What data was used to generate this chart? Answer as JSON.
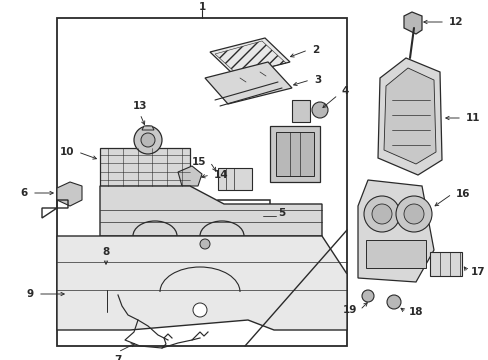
{
  "bg_color": "#ffffff",
  "lc": "#2a2a2a",
  "gray1": "#d8d8d8",
  "gray2": "#c8c8c8",
  "gray3": "#b8b8b8",
  "gray4": "#e8e8e8",
  "parts_labels": [
    "1",
    "2",
    "3",
    "4",
    "5",
    "6",
    "7",
    "8",
    "9",
    "10",
    "11",
    "12",
    "13",
    "14",
    "15",
    "16",
    "17",
    "18",
    "19"
  ]
}
